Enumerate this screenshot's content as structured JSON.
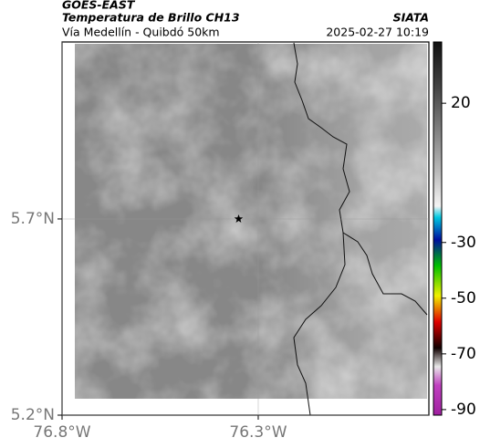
{
  "header": {
    "title": "GOES-EAST",
    "subtitle": "Temperatura de Brillo CH13",
    "region": "Vía Medellín - Quibdó 50km",
    "source": "SIATA",
    "datetime": "2025-02-27 10:19"
  },
  "map": {
    "xlim": [
      -76.8,
      -75.865
    ],
    "ylim": [
      5.2,
      6.151
    ],
    "xticks": [
      {
        "value": -76.8,
        "label": "76.8°W"
      },
      {
        "value": -76.3,
        "label": "76.3°W"
      }
    ],
    "yticks": [
      {
        "value": 5.2,
        "label": "5.2°N"
      },
      {
        "value": 5.7,
        "label": "5.7°N"
      }
    ],
    "grid": true,
    "marker": {
      "lon": -76.35,
      "lat": 5.7
    }
  },
  "colorbar": {
    "clim": [
      -92,
      42
    ],
    "ticks": [
      20,
      -30,
      -50,
      -70,
      -90
    ]
  }
}
